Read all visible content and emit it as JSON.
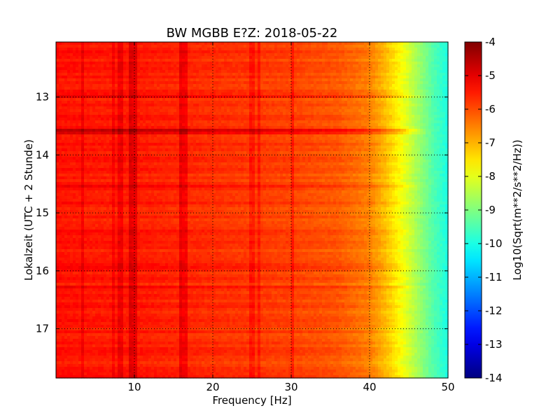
{
  "chart_data": {
    "type": "heatmap",
    "title": "BW MGBB E?Z: 2018-05-22",
    "xlabel": "Frequency [Hz]",
    "ylabel": "Lokalzeit (UTC + 2 Stunde)",
    "xlim": [
      0,
      50
    ],
    "ylim": [
      12.05,
      17.85
    ],
    "x_ticks": [
      "10",
      "20",
      "30",
      "40",
      "50"
    ],
    "y_ticks": [
      "13",
      "14",
      "15",
      "16",
      "17"
    ],
    "grid": true,
    "colormap": "jet",
    "colorbar": {
      "label": "Log10(Sqrt(m**2/s**2/Hz))",
      "min": -14,
      "max": -4,
      "ticks": [
        "-4",
        "-5",
        "-6",
        "-7",
        "-8",
        "-9",
        "-10",
        "-11",
        "-12",
        "-13",
        "-14"
      ]
    },
    "base_level_by_frequency": {
      "frequency_hz": [
        0,
        5,
        10,
        20,
        30,
        36,
        40,
        42,
        44,
        46,
        48,
        50
      ],
      "value": [
        -5.4,
        -5.5,
        -5.5,
        -5.7,
        -5.9,
        -6.1,
        -6.5,
        -7.1,
        -7.8,
        -8.6,
        -9.4,
        -10.0
      ]
    },
    "vertical_features": [
      {
        "frequency_hz": 3.5,
        "strength": 0.6
      },
      {
        "frequency_hz": 7.2,
        "strength": 0.5
      },
      {
        "frequency_hz": 8.2,
        "strength": 0.7
      },
      {
        "frequency_hz": 9.6,
        "strength": 1.0
      },
      {
        "frequency_hz": 10.0,
        "strength": 0.9
      },
      {
        "frequency_hz": 16.0,
        "strength": 1.0
      },
      {
        "frequency_hz": 16.4,
        "strength": 0.8
      },
      {
        "frequency_hz": 25.0,
        "strength": 0.6
      },
      {
        "frequency_hz": 26.0,
        "strength": 0.6
      },
      {
        "frequency_hz": 30.2,
        "strength": 0.7
      }
    ],
    "horizontal_features": [
      {
        "time_h": 12.98,
        "strength": 0.7
      },
      {
        "time_h": 13.58,
        "strength": 2.2
      },
      {
        "time_h": 13.62,
        "strength": 1.5
      },
      {
        "time_h": 14.55,
        "strength": 0.8
      },
      {
        "time_h": 15.32,
        "strength": 0.6
      },
      {
        "time_h": 15.92,
        "strength": 0.6
      },
      {
        "time_h": 16.28,
        "strength": 0.6
      },
      {
        "time_h": 17.38,
        "strength": 0.5
      }
    ]
  }
}
